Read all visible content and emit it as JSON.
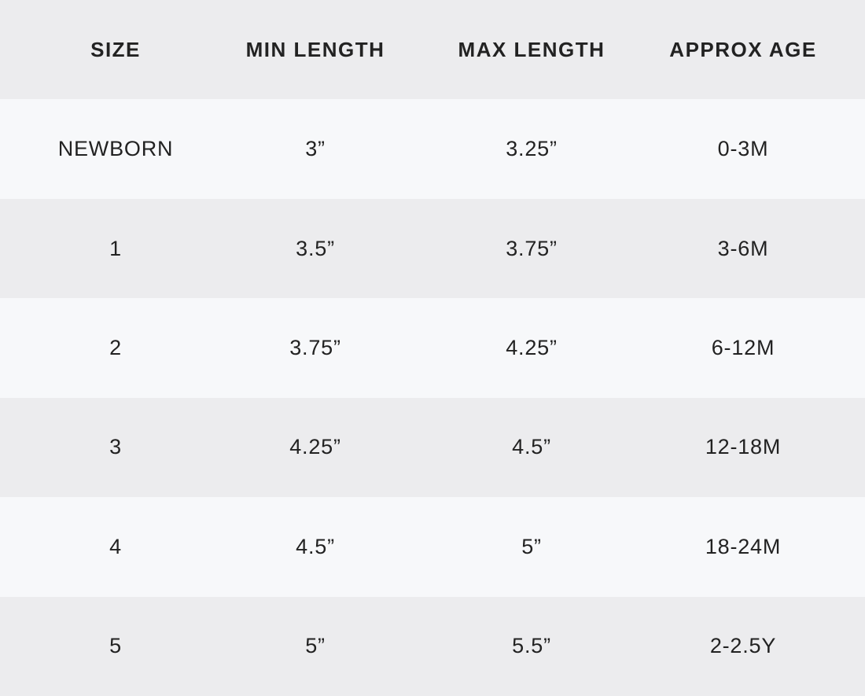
{
  "table": {
    "header": [
      "SIZE",
      "MIN LENGTH",
      "MAX LENGTH",
      "APPROX AGE"
    ],
    "rows": [
      [
        "NEWBORN",
        "3”",
        "3.25”",
        "0-3M"
      ],
      [
        "1",
        "3.5”",
        "3.75”",
        "3-6M"
      ],
      [
        "2",
        "3.75”",
        "4.25”",
        "6-12M"
      ],
      [
        "3",
        "4.25”",
        "4.5”",
        "12-18M"
      ],
      [
        "4",
        "4.5”",
        "5”",
        "18-24M"
      ],
      [
        "5",
        "5”",
        "5.5”",
        "2-2.5Y"
      ]
    ]
  }
}
